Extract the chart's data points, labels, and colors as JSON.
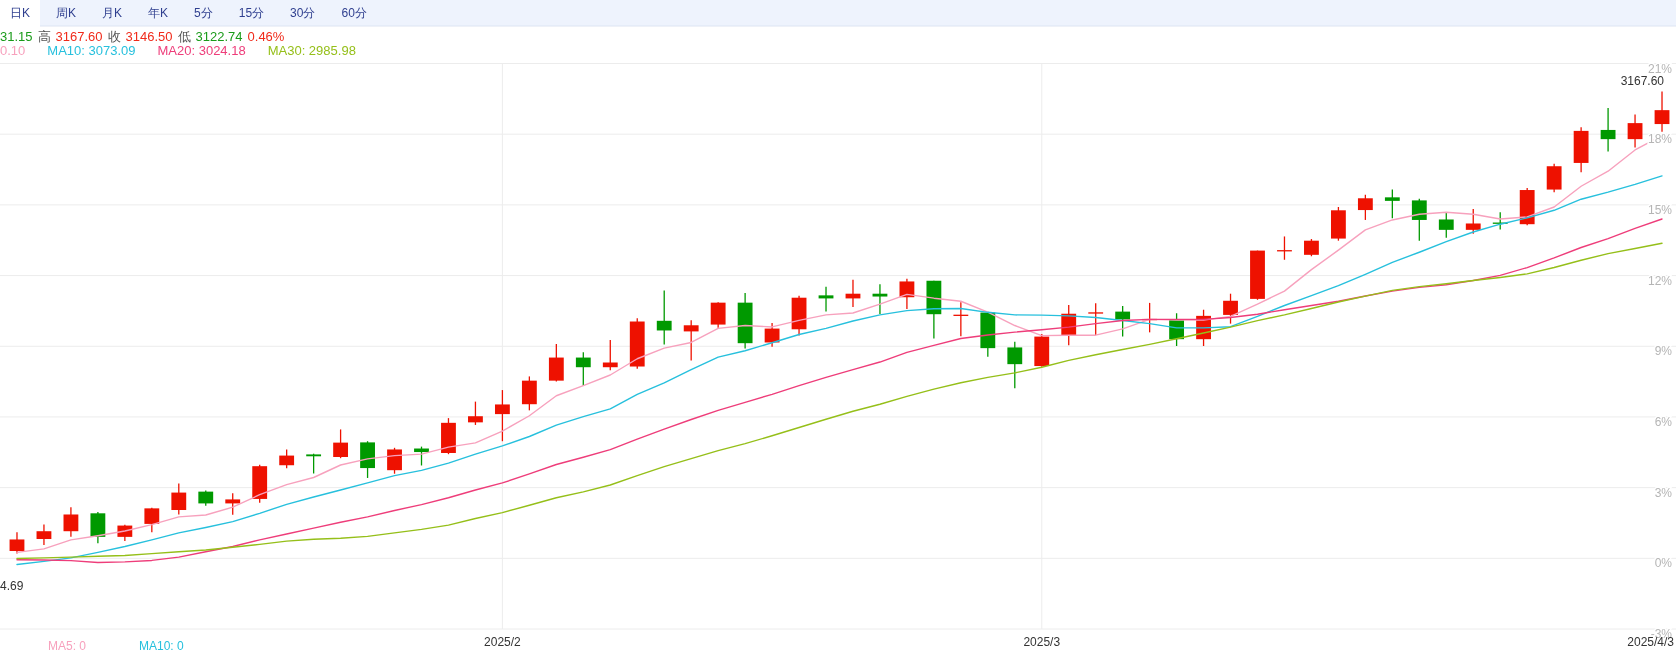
{
  "chart_data": {
    "type": "candlestick",
    "categories": [
      null,
      null,
      null,
      null,
      null,
      null,
      null,
      null,
      null,
      null,
      null,
      null,
      null,
      null,
      null,
      null,
      null,
      null,
      "2025/2",
      null,
      null,
      null,
      null,
      null,
      null,
      null,
      null,
      null,
      null,
      null,
      null,
      null,
      null,
      null,
      null,
      null,
      null,
      null,
      "2025/3",
      null,
      null,
      null,
      null,
      null,
      null,
      null,
      null,
      null,
      null,
      null,
      null,
      null,
      null,
      null,
      null,
      null,
      null,
      null,
      null,
      null,
      null,
      "2025/4/3"
    ],
    "ohlc": [
      [
        0.31,
        1.11,
        0.2,
        0.8
      ],
      [
        0.82,
        1.44,
        0.56,
        1.15
      ],
      [
        1.15,
        2.17,
        0.91,
        1.86
      ],
      [
        1.91,
        1.97,
        0.64,
        0.91
      ],
      [
        0.91,
        1.42,
        0.73,
        1.39
      ],
      [
        1.46,
        2.15,
        1.11,
        2.12
      ],
      [
        2.05,
        3.18,
        1.86,
        2.79
      ],
      [
        2.83,
        2.88,
        2.23,
        2.33
      ],
      [
        2.33,
        2.76,
        1.85,
        2.5
      ],
      [
        2.52,
        3.97,
        2.36,
        3.91
      ],
      [
        3.95,
        4.62,
        3.82,
        4.36
      ],
      [
        4.41,
        4.44,
        3.6,
        4.33
      ],
      [
        4.3,
        5.47,
        4.25,
        4.91
      ],
      [
        4.92,
        4.97,
        3.41,
        3.83
      ],
      [
        3.74,
        4.69,
        3.59,
        4.62
      ],
      [
        4.66,
        4.74,
        3.94,
        4.51
      ],
      [
        4.47,
        5.95,
        4.42,
        5.75
      ],
      [
        5.77,
        6.65,
        5.66,
        6.03
      ],
      [
        6.12,
        7.14,
        4.97,
        6.53
      ],
      [
        6.54,
        7.72,
        6.28,
        7.54
      ],
      [
        7.54,
        9.1,
        7.5,
        8.52
      ],
      [
        8.52,
        8.75,
        7.31,
        8.11
      ],
      [
        8.11,
        9.26,
        7.98,
        8.31
      ],
      [
        8.14,
        10.19,
        8.05,
        10.05
      ],
      [
        10.08,
        11.37,
        9.07,
        9.67
      ],
      [
        9.63,
        10.1,
        8.4,
        9.89
      ],
      [
        9.92,
        10.87,
        9.79,
        10.85
      ],
      [
        10.85,
        11.26,
        8.9,
        9.13
      ],
      [
        9.16,
        9.99,
        8.98,
        9.75
      ],
      [
        9.72,
        11.14,
        9.46,
        11.06
      ],
      [
        11.16,
        11.53,
        10.47,
        11.03
      ],
      [
        11.03,
        11.82,
        10.67,
        11.23
      ],
      [
        11.23,
        11.63,
        10.37,
        11.11
      ],
      [
        11.08,
        11.87,
        10.58,
        11.75
      ],
      [
        11.78,
        11.78,
        9.33,
        10.36
      ],
      [
        10.31,
        10.87,
        9.42,
        10.34
      ],
      [
        10.43,
        10.43,
        8.55,
        8.92
      ],
      [
        8.95,
        9.19,
        7.22,
        8.24
      ],
      [
        8.16,
        9.52,
        8.13,
        9.41
      ],
      [
        9.47,
        10.75,
        9.04,
        10.38
      ],
      [
        10.4,
        10.82,
        9.48,
        10.44
      ],
      [
        10.47,
        10.71,
        9.41,
        10.14
      ],
      [
        10.13,
        10.84,
        9.59,
        10.16
      ],
      [
        10.14,
        10.4,
        9.01,
        9.3
      ],
      [
        9.3,
        10.55,
        9.01,
        10.29
      ],
      [
        10.33,
        11.23,
        9.96,
        10.93
      ],
      [
        11.01,
        13.06,
        10.97,
        13.06
      ],
      [
        13.04,
        13.66,
        12.67,
        13.08
      ],
      [
        12.88,
        13.55,
        12.82,
        13.48
      ],
      [
        13.57,
        14.91,
        13.48,
        14.77
      ],
      [
        14.78,
        15.43,
        14.36,
        15.28
      ],
      [
        15.32,
        15.65,
        14.43,
        15.17
      ],
      [
        15.19,
        15.26,
        13.48,
        14.36
      ],
      [
        14.38,
        14.65,
        13.61,
        13.94
      ],
      [
        13.94,
        14.82,
        13.77,
        14.21
      ],
      [
        14.25,
        14.69,
        13.96,
        14.21
      ],
      [
        14.18,
        15.72,
        14.14,
        15.63
      ],
      [
        15.65,
        16.75,
        15.54,
        16.64
      ],
      [
        16.78,
        18.29,
        16.38,
        18.14
      ],
      [
        18.18,
        19.11,
        17.26,
        17.79
      ],
      [
        17.79,
        18.84,
        17.44,
        18.47
      ],
      [
        18.43,
        19.81,
        18.1,
        19.02
      ]
    ],
    "colors": [
      "#ee1100",
      "#ee1100",
      "#ee1100",
      "#009900",
      "#ee1100",
      "#ee1100",
      "#ee1100",
      "#009900",
      "#ee1100",
      "#ee1100",
      "#ee1100",
      "#009900",
      "#ee1100",
      "#009900",
      "#ee1100",
      "#009900",
      "#ee1100",
      "#ee1100",
      "#ee1100",
      "#ee1100",
      "#ee1100",
      "#009900",
      "#ee1100",
      "#ee1100",
      "#009900",
      "#ee1100",
      "#ee1100",
      "#009900",
      "#ee1100",
      "#ee1100",
      "#009900",
      "#ee1100",
      "#009900",
      "#ee1100",
      "#009900",
      "#ee1100",
      "#009900",
      "#009900",
      "#ee1100",
      "#ee1100",
      "#ee1100",
      "#009900",
      "#ee1100",
      "#009900",
      "#ee1100",
      "#ee1100",
      "#ee1100",
      "#ee1100",
      "#ee1100",
      "#ee1100",
      "#ee1100",
      "#009900",
      "#009900",
      "#009900",
      "#ee1100",
      "#009900",
      "#ee1100",
      "#ee1100",
      "#ee1100",
      "#009900",
      "#ee1100",
      "#ee1100"
    ],
    "series": [
      {
        "type": "line",
        "name": "0.10",
        "color": "#f7a1bd",
        "values": [
          0.25,
          0.4,
          0.78,
          0.96,
          1.16,
          1.43,
          1.76,
          1.84,
          2.17,
          2.7,
          3.13,
          3.43,
          3.96,
          4.22,
          4.36,
          4.42,
          4.72,
          4.9,
          5.4,
          6.05,
          6.9,
          7.33,
          7.78,
          8.47,
          8.92,
          9.16,
          9.76,
          9.88,
          9.82,
          10.1,
          10.33,
          10.41,
          10.79,
          11.2,
          11.04,
          10.91,
          10.45,
          9.88,
          9.45,
          9.47,
          9.47,
          9.74,
          10.14,
          10.11,
          10.11,
          10.27,
          10.79,
          11.34,
          12.25,
          13.08,
          13.94,
          14.36,
          14.6,
          14.69,
          14.6,
          14.4,
          14.49,
          14.91,
          15.79,
          16.43,
          17.33,
          17.94
        ]
      },
      {
        "type": "line",
        "name": "MA10: 3073.09",
        "color": "#27c0dd",
        "values": [
          -0.26,
          -0.13,
          0.02,
          0.25,
          0.5,
          0.78,
          1.08,
          1.31,
          1.56,
          1.91,
          2.29,
          2.6,
          2.9,
          3.2,
          3.51,
          3.73,
          4.04,
          4.42,
          4.77,
          5.17,
          5.65,
          6.01,
          6.34,
          6.96,
          7.45,
          8.01,
          8.54,
          8.81,
          9.15,
          9.5,
          9.76,
          10.07,
          10.33,
          10.51,
          10.59,
          10.6,
          10.44,
          10.33,
          10.32,
          10.29,
          10.22,
          10.09,
          9.96,
          9.78,
          9.78,
          9.83,
          10.27,
          10.73,
          11.15,
          11.57,
          12.05,
          12.56,
          12.99,
          13.44,
          13.85,
          14.18,
          14.45,
          14.77,
          15.24,
          15.54,
          15.87,
          16.23
        ]
      },
      {
        "type": "line",
        "name": "MA20: 3024.18",
        "color": "#ee3d7a",
        "values": [
          -0.06,
          -0.07,
          -0.1,
          -0.18,
          -0.15,
          -0.09,
          0.05,
          0.28,
          0.5,
          0.78,
          1.03,
          1.28,
          1.53,
          1.76,
          2.03,
          2.28,
          2.57,
          2.9,
          3.2,
          3.58,
          3.98,
          4.29,
          4.61,
          5.06,
          5.48,
          5.89,
          6.28,
          6.62,
          6.96,
          7.33,
          7.68,
          8.01,
          8.33,
          8.74,
          9.04,
          9.33,
          9.48,
          9.6,
          9.7,
          9.81,
          9.96,
          10.09,
          10.14,
          10.14,
          10.14,
          10.22,
          10.36,
          10.55,
          10.73,
          10.91,
          11.13,
          11.34,
          11.5,
          11.61,
          11.79,
          12.01,
          12.34,
          12.75,
          13.19,
          13.57,
          14.0,
          14.4
        ]
      },
      {
        "type": "line",
        "name": "MA30: 2985.98",
        "color": "#95bf19",
        "values": [
          -0.01,
          0.02,
          0.05,
          0.09,
          0.12,
          0.2,
          0.28,
          0.35,
          0.47,
          0.59,
          0.73,
          0.81,
          0.85,
          0.93,
          1.08,
          1.23,
          1.41,
          1.69,
          1.94,
          2.25,
          2.57,
          2.82,
          3.11,
          3.51,
          3.89,
          4.23,
          4.57,
          4.87,
          5.2,
          5.55,
          5.9,
          6.24,
          6.54,
          6.87,
          7.18,
          7.45,
          7.68,
          7.87,
          8.11,
          8.4,
          8.64,
          8.86,
          9.08,
          9.32,
          9.56,
          9.81,
          10.09,
          10.33,
          10.6,
          10.88,
          11.13,
          11.37,
          11.53,
          11.65,
          11.79,
          11.92,
          12.07,
          12.34,
          12.65,
          12.93,
          13.15,
          13.37
        ]
      }
    ],
    "ylim": [
      -3,
      21
    ],
    "yticks": [
      {
        "value": -3,
        "label": "-3%"
      },
      {
        "value": 0,
        "label": "0%"
      },
      {
        "value": 3,
        "label": "3%"
      },
      {
        "value": 6,
        "label": "6%"
      },
      {
        "value": 9,
        "label": "9%"
      },
      {
        "value": 12,
        "label": "12%"
      },
      {
        "value": 15,
        "label": "15%"
      },
      {
        "value": 18,
        "label": "18%"
      },
      {
        "value": 21,
        "label": "21%"
      }
    ],
    "grid": true,
    "legend": "top left",
    "annotations": [
      "日K",
      "周K",
      "月K",
      "年K",
      "5分",
      "15分",
      "30分",
      "60分",
      "31.15",
      "高",
      "3167.60",
      "收",
      "3146.50",
      "低",
      "3122.74",
      "0.46%",
      "4.69",
      {
        "text": "3167.60",
        "x": "2025/4/3",
        "y": 19.81
      },
      "MA5: 0",
      "MA10: 0"
    ]
  }
}
